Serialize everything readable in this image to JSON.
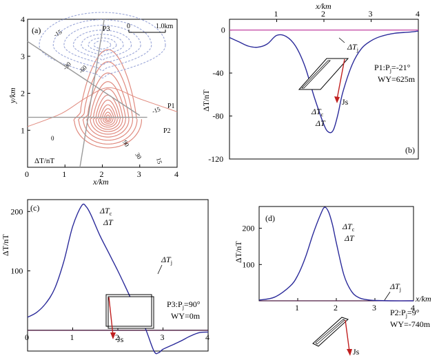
{
  "colors": {
    "positive_contour": "#e08a7e",
    "negative_contour": "#9aa6d8",
    "profile_line": "#9a9a9a",
    "anomaly_curve": "#2a2a9a",
    "baseline": "#c040a0",
    "magnetization_arrow": "#c02020"
  },
  "chart_data": [
    {
      "panel": "a",
      "type": "contour",
      "panel_label": "(a)",
      "xlabel": "x/km",
      "ylabel": "y/km",
      "xlim": [
        0,
        4
      ],
      "ylim": [
        0,
        4
      ],
      "x_ticks": [
        "0",
        "1",
        "2",
        "3",
        "4"
      ],
      "y_ticks": [
        "1",
        "2",
        "3",
        "4"
      ],
      "unit_label": "ΔT/nT",
      "scale_bar": {
        "start": "0",
        "end": "1.0km"
      },
      "profile_labels": [
        "P1",
        "P2",
        "P3"
      ],
      "contour_labels": [
        "-15",
        "-30",
        "-60",
        "-15",
        "0",
        "90",
        "30",
        "15"
      ],
      "positive_center": [
        2.15,
        1.3
      ],
      "negative_center": [
        2.0,
        3.3
      ],
      "profiles": {
        "P1": [
          [
            0.0,
            3.4
          ],
          [
            3.0,
            1.4
          ]
        ],
        "P2": [
          [
            0.0,
            1.35
          ],
          [
            3.2,
            1.35
          ]
        ],
        "P3": [
          [
            1.4,
            0.0
          ],
          [
            2.05,
            4.0
          ]
        ]
      }
    },
    {
      "panel": "b",
      "type": "line",
      "panel_label": "(b)",
      "xlabel": "x/km",
      "ylabel": "ΔT/nT",
      "xlim": [
        0,
        4
      ],
      "ylim": [
        -120,
        10
      ],
      "x_ticks": [
        "1",
        "2",
        "3",
        "4"
      ],
      "y_ticks": [
        "0",
        "-40",
        "-80",
        "-120"
      ],
      "series": [
        {
          "name": "ΔTc ΔT",
          "x": [
            0,
            0.2,
            0.4,
            0.6,
            0.8,
            1.0,
            1.2,
            1.4,
            1.6,
            1.8,
            2.0,
            2.1,
            2.2,
            2.3,
            2.4,
            2.6,
            2.8,
            3.0,
            3.2,
            3.5,
            3.8,
            4.0
          ],
          "values": [
            -7,
            -11,
            -15,
            -16,
            -13,
            -5,
            -6,
            -15,
            -34,
            -63,
            -88,
            -95,
            -93,
            -78,
            -58,
            -32,
            -17,
            -10,
            -6,
            -3,
            -2,
            -1
          ]
        },
        {
          "name": "ΔTj",
          "x": [
            0,
            4
          ],
          "values": [
            0,
            0
          ]
        }
      ],
      "annotations": {
        "curve_label_main": "ΔT",
        "curve_label_sub": "c",
        "curve_label_2": "ΔT",
        "baseline_main": "ΔT",
        "baseline_sub": "j",
        "profile_text_1": "P1:P",
        "profile_sub": "j",
        "profile_text_2": "=-21°",
        "wy": "WY=625m",
        "arrow_label": "Js"
      }
    },
    {
      "panel": "c",
      "type": "line",
      "panel_label": "(c)",
      "xlabel": "",
      "ylabel": "ΔT/nT",
      "xlim": [
        0,
        4
      ],
      "ylim": [
        -35,
        220
      ],
      "x_ticks": [
        "0",
        "1",
        "2",
        "3",
        "4"
      ],
      "y_ticks": [
        "100",
        "200"
      ],
      "series": [
        {
          "name": "ΔTc ΔT",
          "x": [
            0,
            0.2,
            0.4,
            0.6,
            0.8,
            1.0,
            1.2,
            1.3,
            1.4,
            1.6,
            1.8,
            2.0,
            2.2,
            2.4,
            2.6,
            2.8,
            2.9,
            3.0,
            3.2,
            3.4,
            3.6,
            3.8,
            4.0
          ],
          "values": [
            22,
            30,
            45,
            70,
            115,
            175,
            210,
            208,
            195,
            160,
            130,
            100,
            68,
            35,
            5,
            -35,
            -38,
            -32,
            -25,
            -18,
            -10,
            -4,
            -3
          ]
        },
        {
          "name": "ΔTj",
          "x": [
            0,
            4
          ],
          "values": [
            0,
            0
          ]
        }
      ],
      "annotations": {
        "curve_label_main": "ΔT",
        "curve_label_sub": "c",
        "curve_label_2": "ΔT",
        "baseline_main": "ΔT",
        "baseline_sub": "j",
        "profile_text_1": "P3:P",
        "profile_sub": "j",
        "profile_text_2": "=90°",
        "wy": "WY=0m",
        "arrow_label": "Js"
      }
    },
    {
      "panel": "d",
      "type": "line",
      "panel_label": "(d)",
      "xlabel": "x/km",
      "ylabel": "ΔT/nT",
      "xlim": [
        0,
        4
      ],
      "ylim": [
        0,
        260
      ],
      "x_ticks": [
        "1",
        "2",
        "3",
        "4"
      ],
      "y_ticks": [
        "100",
        "200"
      ],
      "series": [
        {
          "name": "ΔTc ΔT",
          "x": [
            0,
            0.4,
            0.8,
            1.0,
            1.2,
            1.4,
            1.6,
            1.7,
            1.8,
            1.9,
            2.0,
            2.2,
            2.4,
            2.6,
            2.8,
            3.0,
            3.4,
            4.0
          ],
          "values": [
            2,
            10,
            40,
            70,
            120,
            185,
            240,
            258,
            245,
            210,
            160,
            70,
            25,
            8,
            3,
            1,
            0,
            0
          ]
        },
        {
          "name": "ΔTj",
          "x": [
            0,
            4
          ],
          "values": [
            0,
            0
          ]
        }
      ],
      "annotations": {
        "curve_label_main": "ΔT",
        "curve_label_sub": "c",
        "curve_label_2": "ΔT",
        "baseline_main": "ΔT",
        "baseline_sub": "j",
        "profile_text_1": "P2:P",
        "profile_sub": "j",
        "profile_text_2": "=9°",
        "wy": "WY=-740m",
        "arrow_label": "Js"
      }
    }
  ]
}
